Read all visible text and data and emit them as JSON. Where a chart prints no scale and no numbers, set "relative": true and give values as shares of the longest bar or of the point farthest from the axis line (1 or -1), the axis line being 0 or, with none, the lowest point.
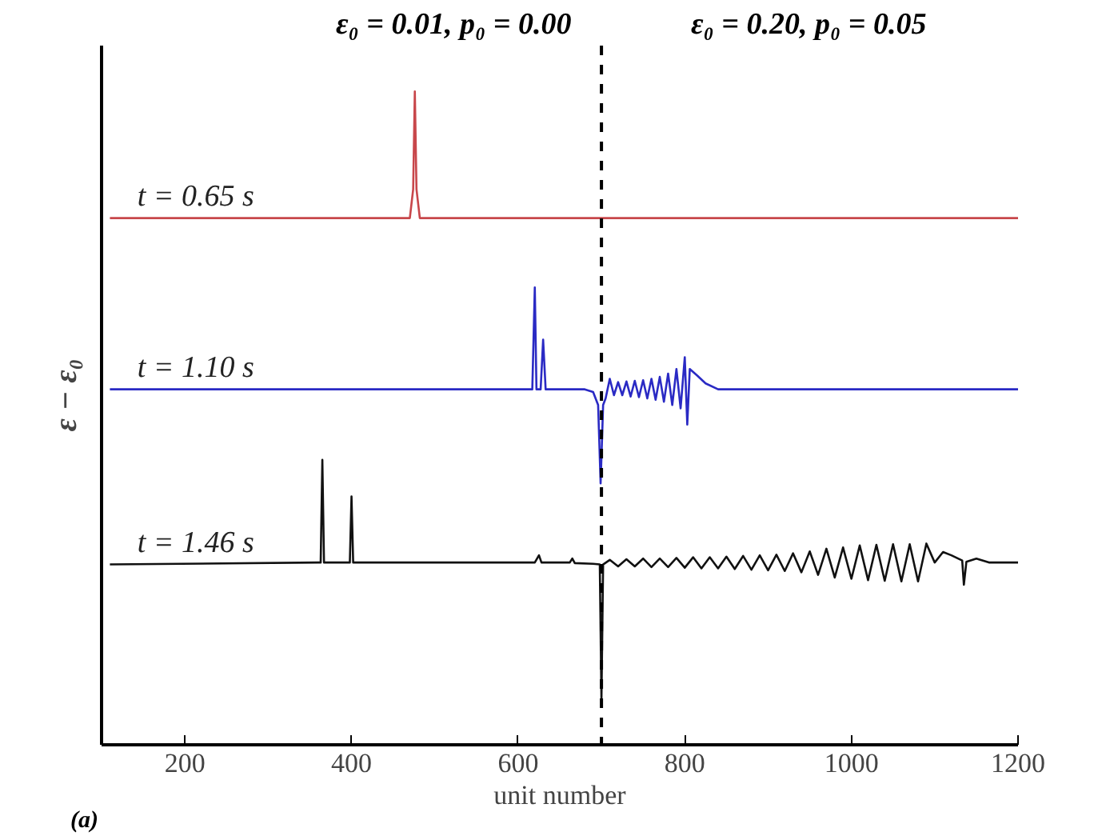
{
  "chart_data": {
    "type": "line",
    "relative": true,
    "xlabel": "unit number",
    "ylabel": "ε − ε₀",
    "xlim": [
      100,
      1200
    ],
    "xticks": [
      200,
      400,
      600,
      800,
      1000,
      1200
    ],
    "grid": false,
    "series": [
      {
        "name": "t = 0.65 s",
        "color": "#c8474b",
        "x": [
          110,
          470,
          474,
          476,
          478,
          482,
          1200
        ],
        "values": [
          0.806,
          0.806,
          0.85,
          1,
          0.85,
          0.806,
          0.806
        ]
      },
      {
        "name": "t = 1.10 s",
        "color": "#2a2ac4",
        "x": [
          110,
          617,
          620,
          622,
          627,
          630,
          633,
          680,
          690,
          696,
          699,
          702,
          705,
          710,
          715,
          720,
          725,
          730,
          735,
          740,
          745,
          750,
          755,
          760,
          765,
          770,
          775,
          780,
          785,
          790,
          795,
          800,
          803,
          806,
          815,
          825,
          840,
          1200
        ],
        "values": [
          0.544,
          0.544,
          0.7,
          0.544,
          0.544,
          0.62,
          0.544,
          0.544,
          0.54,
          0.52,
          0.4,
          0.52,
          0.53,
          0.56,
          0.535,
          0.555,
          0.535,
          0.556,
          0.533,
          0.557,
          0.532,
          0.558,
          0.53,
          0.56,
          0.528,
          0.563,
          0.525,
          0.568,
          0.52,
          0.575,
          0.515,
          0.593,
          0.49,
          0.575,
          0.565,
          0.553,
          0.544,
          0.544
        ]
      },
      {
        "name": "t = 1.46 s",
        "color": "#111111",
        "x": [
          110,
          360,
          363,
          365,
          367,
          398,
          400,
          402,
          620,
          625,
          628,
          662,
          665,
          668,
          690,
          698,
          700,
          702,
          710,
          720,
          730,
          740,
          750,
          760,
          770,
          780,
          790,
          800,
          810,
          820,
          830,
          840,
          850,
          860,
          870,
          880,
          890,
          900,
          910,
          920,
          930,
          940,
          950,
          960,
          970,
          980,
          990,
          1000,
          1010,
          1020,
          1030,
          1040,
          1050,
          1060,
          1070,
          1080,
          1090,
          1100,
          1110,
          1120,
          1133,
          1135,
          1138,
          1150,
          1165,
          1200
        ],
        "values": [
          0.276,
          0.279,
          0.279,
          0.436,
          0.279,
          0.279,
          0.38,
          0.279,
          0.279,
          0.29,
          0.279,
          0.279,
          0.285,
          0.278,
          0.277,
          0.276,
          0.069,
          0.276,
          0.283,
          0.273,
          0.284,
          0.273,
          0.285,
          0.272,
          0.285,
          0.272,
          0.286,
          0.271,
          0.287,
          0.27,
          0.287,
          0.27,
          0.288,
          0.269,
          0.289,
          0.268,
          0.29,
          0.267,
          0.291,
          0.266,
          0.293,
          0.264,
          0.296,
          0.26,
          0.3,
          0.256,
          0.302,
          0.254,
          0.305,
          0.252,
          0.306,
          0.251,
          0.307,
          0.25,
          0.307,
          0.25,
          0.308,
          0.279,
          0.295,
          0.29,
          0.282,
          0.245,
          0.28,
          0.285,
          0.279,
          0.279
        ]
      }
    ],
    "ref_lines": [
      {
        "axis": "x",
        "value": 700,
        "line_style": "dashed",
        "color": "#000000"
      }
    ],
    "annotations": [
      "ε₀ = 0.01, p₀ = 0.00",
      "ε₀ = 0.20, p₀ = 0.05",
      "(a)"
    ]
  }
}
